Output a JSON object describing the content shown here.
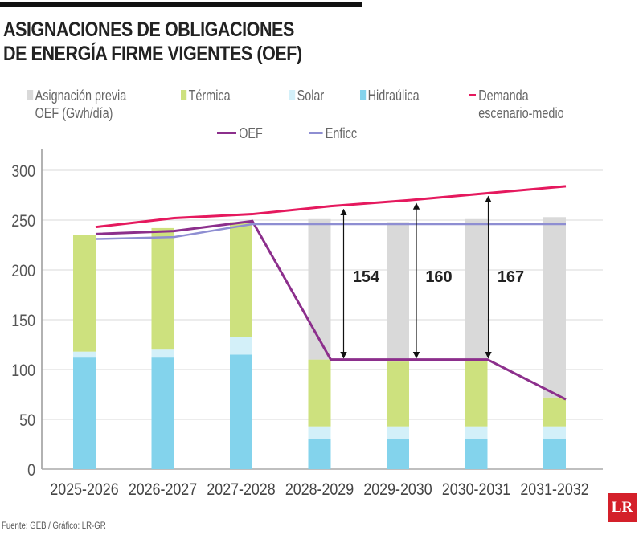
{
  "title": [
    "ASIGNACIONES DE OBLIGACIONES",
    "DE ENERGÍA FIRME VIGENTES (OEF)"
  ],
  "source": "Fuente: GEB / Gráfico: LR-GR",
  "logo": "LR",
  "colors": {
    "previa": "#d9d9d9",
    "termica": "#cde17e",
    "solar": "#d3f0f9",
    "hidraulica": "#83d3ec",
    "demanda": "#e5195e",
    "oef": "#8c2f8c",
    "enficc": "#8e8ed2"
  },
  "chart_data": {
    "type": "bar",
    "stacked": true,
    "title": "ASIGNACIONES DE OBLIGACIONES DE ENERGÍA FIRME VIGENTES (OEF)",
    "categories": [
      "2025-2026",
      "2026-2027",
      "2027-2028",
      "2028-2029",
      "2029-2030",
      "2030-2031",
      "2031-2032"
    ],
    "ylim": [
      0,
      300
    ],
    "yticks": [
      0,
      50,
      100,
      150,
      200,
      250,
      300
    ],
    "grid": true,
    "legend_position": "top",
    "series": [
      {
        "name": "Hidraúlica",
        "key": "hidraulica",
        "values": [
          112,
          112,
          115,
          30,
          30,
          30,
          30
        ]
      },
      {
        "name": "Solar",
        "key": "solar",
        "values": [
          6,
          8,
          18,
          13,
          13,
          13,
          13
        ]
      },
      {
        "name": "Térmica",
        "key": "termica",
        "values": [
          117,
          122,
          115,
          67,
          65,
          67,
          29
        ]
      },
      {
        "name": "Asignación previa OEF (Gwh/día)",
        "key": "previa",
        "values": [
          0,
          0,
          0,
          141,
          140,
          141,
          181
        ]
      }
    ],
    "lines": [
      {
        "name": "Demanda escenario-medio",
        "key": "demanda",
        "values": [
          243,
          252,
          256,
          264,
          270,
          277,
          284
        ]
      },
      {
        "name": "OEF",
        "key": "oef",
        "values": [
          236,
          239,
          249,
          110,
          110,
          110,
          70
        ]
      },
      {
        "name": "Enficc",
        "key": "enficc",
        "values": [
          231,
          233,
          246,
          246,
          246,
          246,
          246
        ]
      }
    ],
    "annotations": [
      {
        "category": "2028-2029",
        "label": "154"
      },
      {
        "category": "2029-2030",
        "label": "160"
      },
      {
        "category": "2030-2031",
        "label": "167"
      }
    ]
  }
}
